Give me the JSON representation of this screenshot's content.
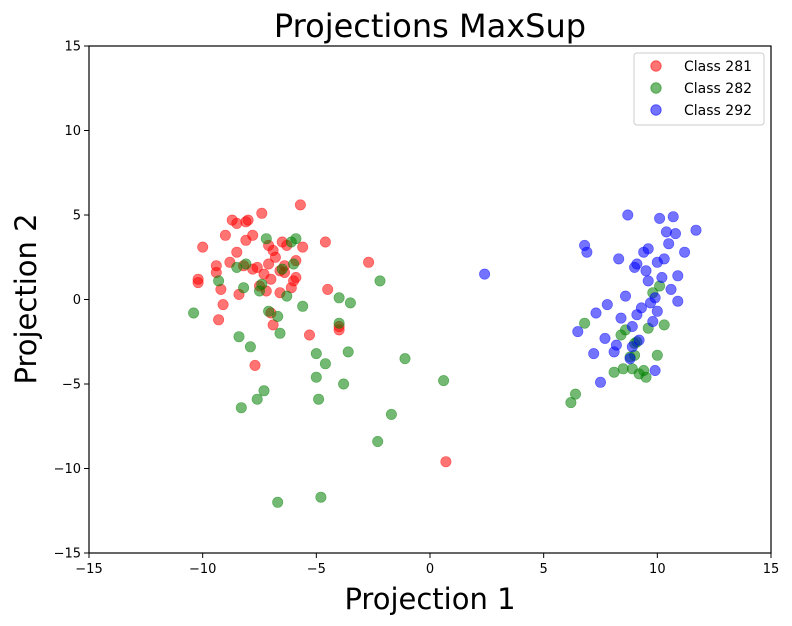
{
  "chart_data": {
    "type": "scatter",
    "title": "Projections MaxSup",
    "xlabel": "Projection 1",
    "ylabel": "Projection 2",
    "xlim": [
      -15,
      15
    ],
    "ylim": [
      -15,
      15
    ],
    "xticks": [
      -15,
      -10,
      -5,
      0,
      5,
      10,
      15
    ],
    "yticks": [
      -15,
      -10,
      -5,
      0,
      5,
      10,
      15
    ],
    "grid": false,
    "legend_position": "top-right",
    "series": [
      {
        "name": "Class 281",
        "color": "#ff0000",
        "points": [
          [
            -10.2,
            1.0
          ],
          [
            -10.2,
            1.2
          ],
          [
            -10.0,
            3.1
          ],
          [
            -9.4,
            1.6
          ],
          [
            -9.4,
            2.0
          ],
          [
            -9.3,
            -1.2
          ],
          [
            -9.2,
            0.6
          ],
          [
            -9.1,
            -0.3
          ],
          [
            -9.0,
            3.8
          ],
          [
            -8.8,
            2.2
          ],
          [
            -8.7,
            4.7
          ],
          [
            -8.5,
            4.5
          ],
          [
            -8.5,
            2.8
          ],
          [
            -8.4,
            0.3
          ],
          [
            -8.2,
            2.0
          ],
          [
            -8.1,
            3.5
          ],
          [
            -8.1,
            4.6
          ],
          [
            -8.0,
            4.7
          ],
          [
            -7.8,
            1.8
          ],
          [
            -7.8,
            3.8
          ],
          [
            -7.7,
            -3.9
          ],
          [
            -7.6,
            1.9
          ],
          [
            -7.5,
            0.8
          ],
          [
            -7.4,
            5.1
          ],
          [
            -7.3,
            1.5
          ],
          [
            -7.2,
            0.5
          ],
          [
            -7.1,
            2.1
          ],
          [
            -7.1,
            3.2
          ],
          [
            -7.0,
            1.2
          ],
          [
            -7.0,
            -0.8
          ],
          [
            -6.9,
            2.9
          ],
          [
            -6.9,
            -1.5
          ],
          [
            -6.8,
            2.5
          ],
          [
            -6.6,
            1.7
          ],
          [
            -6.6,
            0.4
          ],
          [
            -6.5,
            3.4
          ],
          [
            -6.4,
            2.0
          ],
          [
            -6.4,
            1.6
          ],
          [
            -6.3,
            3.2
          ],
          [
            -6.1,
            0.7
          ],
          [
            -6.0,
            1.1
          ],
          [
            -5.9,
            1.3
          ],
          [
            -5.9,
            2.3
          ],
          [
            -5.7,
            5.6
          ],
          [
            -5.6,
            3.1
          ],
          [
            -5.3,
            -2.1
          ],
          [
            -4.6,
            3.4
          ],
          [
            -4.5,
            0.6
          ],
          [
            -4.0,
            -1.6
          ],
          [
            -4.0,
            -1.8
          ],
          [
            -2.7,
            2.2
          ],
          [
            0.7,
            -9.6
          ]
        ]
      },
      {
        "name": "Class 282",
        "color": "#008000",
        "points": [
          [
            -10.4,
            -0.8
          ],
          [
            -9.3,
            1.1
          ],
          [
            -8.5,
            1.9
          ],
          [
            -8.4,
            -2.2
          ],
          [
            -8.3,
            -6.4
          ],
          [
            -8.2,
            0.7
          ],
          [
            -8.1,
            2.1
          ],
          [
            -7.9,
            -2.8
          ],
          [
            -7.6,
            -5.9
          ],
          [
            -7.5,
            0.5
          ],
          [
            -7.4,
            0.9
          ],
          [
            -7.3,
            -5.4
          ],
          [
            -7.2,
            3.6
          ],
          [
            -7.1,
            -0.7
          ],
          [
            -6.7,
            -1.0
          ],
          [
            -6.7,
            -12.0
          ],
          [
            -6.6,
            -2.0
          ],
          [
            -6.5,
            1.8
          ],
          [
            -6.3,
            0.2
          ],
          [
            -6.1,
            3.4
          ],
          [
            -6.0,
            2.1
          ],
          [
            -5.9,
            3.6
          ],
          [
            -5.6,
            -0.4
          ],
          [
            -5.0,
            -3.2
          ],
          [
            -5.0,
            -4.6
          ],
          [
            -4.9,
            -5.9
          ],
          [
            -4.8,
            -11.7
          ],
          [
            -4.6,
            -3.8
          ],
          [
            -4.0,
            -1.4
          ],
          [
            -4.0,
            0.1
          ],
          [
            -3.8,
            -5.0
          ],
          [
            -3.6,
            -3.1
          ],
          [
            -3.5,
            -0.2
          ],
          [
            -2.3,
            -8.4
          ],
          [
            -2.2,
            1.1
          ],
          [
            -1.7,
            -6.8
          ],
          [
            -1.1,
            -3.5
          ],
          [
            0.6,
            -4.8
          ],
          [
            6.2,
            -6.1
          ],
          [
            6.4,
            -5.6
          ],
          [
            6.8,
            -1.4
          ],
          [
            8.1,
            -4.3
          ],
          [
            8.4,
            -2.1
          ],
          [
            8.5,
            -4.1
          ],
          [
            8.6,
            -1.8
          ],
          [
            8.8,
            -3.4
          ],
          [
            8.9,
            -4.1
          ],
          [
            9.0,
            -3.3
          ],
          [
            9.0,
            -2.6
          ],
          [
            9.1,
            -2.5
          ],
          [
            9.2,
            -4.4
          ],
          [
            9.4,
            -4.2
          ],
          [
            9.5,
            -4.6
          ],
          [
            9.6,
            -1.7
          ],
          [
            9.8,
            0.4
          ],
          [
            10.0,
            -3.3
          ],
          [
            10.1,
            0.8
          ],
          [
            10.3,
            -1.5
          ]
        ]
      },
      {
        "name": "Class 292",
        "color": "#0000ff",
        "points": [
          [
            2.4,
            1.5
          ],
          [
            6.5,
            -1.9
          ],
          [
            6.8,
            3.2
          ],
          [
            6.9,
            2.8
          ],
          [
            7.2,
            -3.2
          ],
          [
            7.3,
            -0.8
          ],
          [
            7.5,
            -4.9
          ],
          [
            7.7,
            -2.3
          ],
          [
            7.8,
            -0.3
          ],
          [
            8.1,
            -3.1
          ],
          [
            8.2,
            -2.7
          ],
          [
            8.3,
            2.4
          ],
          [
            8.4,
            -1.1
          ],
          [
            8.6,
            0.2
          ],
          [
            8.7,
            5.0
          ],
          [
            8.9,
            -1.6
          ],
          [
            8.9,
            -2.8
          ],
          [
            9.0,
            1.9
          ],
          [
            9.1,
            2.1
          ],
          [
            9.1,
            -0.9
          ],
          [
            9.2,
            -2.4
          ],
          [
            9.3,
            -0.5
          ],
          [
            9.4,
            2.8
          ],
          [
            9.5,
            1.7
          ],
          [
            9.6,
            1.1
          ],
          [
            9.7,
            -0.2
          ],
          [
            9.8,
            -1.3
          ],
          [
            9.9,
            0.1
          ],
          [
            9.9,
            -4.2
          ],
          [
            10.0,
            2.2
          ],
          [
            10.1,
            4.8
          ],
          [
            10.2,
            1.3
          ],
          [
            10.3,
            2.4
          ],
          [
            10.4,
            4.0
          ],
          [
            10.5,
            3.3
          ],
          [
            10.6,
            0.6
          ],
          [
            10.7,
            4.9
          ],
          [
            10.8,
            3.9
          ],
          [
            10.9,
            1.4
          ],
          [
            11.2,
            2.8
          ],
          [
            11.7,
            4.1
          ],
          [
            10.0,
            -0.7
          ],
          [
            9.6,
            3.0
          ],
          [
            10.9,
            -0.1
          ],
          [
            8.8,
            -3.5
          ]
        ]
      }
    ]
  }
}
